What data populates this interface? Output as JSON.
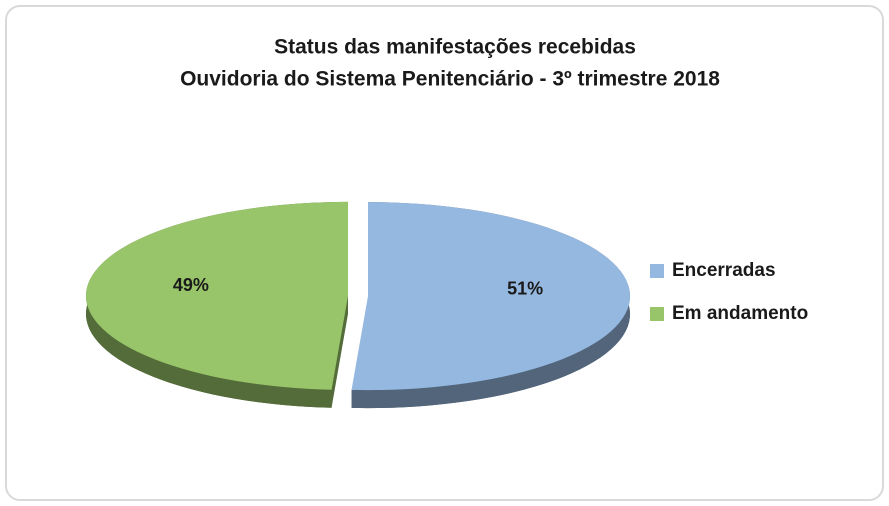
{
  "chart_data": {
    "type": "pie",
    "title": [
      "Status das manifestações recebidas",
      "Ouvidoria do Sistema Penitenciário - 3º trimestre 2018"
    ],
    "categories": [
      "Encerradas",
      "Em andamento"
    ],
    "values": [
      51,
      49
    ],
    "value_labels": [
      "51%",
      "49%"
    ],
    "colors": [
      "#95b8e0",
      "#98c46a"
    ],
    "legend": "right"
  }
}
